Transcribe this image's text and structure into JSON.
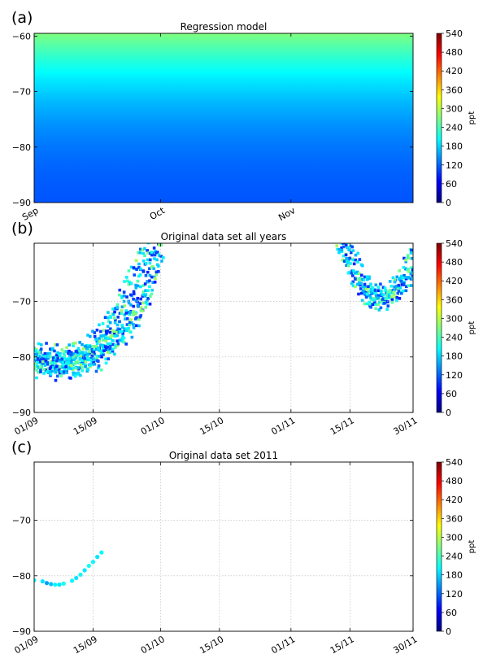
{
  "colormap": {
    "name": "jet",
    "stops": [
      "#00007f",
      "#0000ff",
      "#007fff",
      "#00ffff",
      "#7fff7f",
      "#ffff00",
      "#ff7f00",
      "#ff0000",
      "#7f0000"
    ]
  },
  "chart_data": [
    {
      "panel_label": "(a)",
      "type": "heatmap",
      "title": "Regression model",
      "xlabel": "",
      "ylabel": "",
      "ylim": [
        -90,
        -59.5
      ],
      "xlim": [
        "2011-09-01",
        "2011-11-30"
      ],
      "yticks": [
        -60,
        -70,
        -80,
        -90
      ],
      "xticks": [
        {
          "label": "Sep",
          "date": "2011-09-01"
        },
        {
          "label": "Oct",
          "date": "2011-10-01"
        },
        {
          "label": "Nov",
          "date": "2011-11-01"
        }
      ],
      "grid": false,
      "colorbar": {
        "label": "ppt",
        "range": [
          0,
          540
        ],
        "ticks": [
          0,
          60,
          120,
          180,
          240,
          300,
          360,
          420,
          480,
          540
        ]
      },
      "field": {
        "lat": [
          -59.5,
          -64,
          -68,
          -72,
          -76,
          -80,
          -84,
          -87,
          -90
        ],
        "value_start": [
          270,
          225,
          190,
          165,
          145,
          130,
          120,
          115,
          112
        ],
        "value_end": [
          255,
          215,
          180,
          158,
          140,
          127,
          118,
          114,
          111
        ]
      }
    },
    {
      "panel_label": "(b)",
      "type": "scatter",
      "title": "Original data set all years",
      "xlabel": "",
      "ylabel": "",
      "ylim": [
        -90,
        -59.5
      ],
      "xlim": [
        "2011-09-01",
        "2011-11-30"
      ],
      "yticks": [
        -70,
        -80,
        -90
      ],
      "xticks": [
        {
          "label": "01/09",
          "date": "2011-09-01"
        },
        {
          "label": "15/09",
          "date": "2011-09-15"
        },
        {
          "label": "01/10",
          "date": "2011-10-01"
        },
        {
          "label": "15/10",
          "date": "2011-10-15"
        },
        {
          "label": "01/11",
          "date": "2011-11-01"
        },
        {
          "label": "15/11",
          "date": "2011-11-15"
        },
        {
          "label": "30/11",
          "date": "2011-11-30"
        }
      ],
      "grid": true,
      "colorbar": {
        "label": "ppt",
        "range": [
          0,
          540
        ],
        "ticks": [
          0,
          60,
          120,
          180,
          240,
          300,
          360,
          420,
          480,
          540
        ]
      },
      "tracks": [
        {
          "name": "",
          "lat": [
            -79.5,
            -79.8,
            -79.6,
            -78.5,
            -76,
            -72,
            -67.5,
            -63,
            -59.5
          ],
          "date": [
            "2011-09-01",
            "2011-09-05",
            "2011-09-09",
            "2011-09-13",
            "2011-09-17",
            "2011-09-20",
            "2011-09-23",
            "2011-09-26",
            "2011-09-28"
          ]
        },
        {
          "name": "",
          "lat": [
            -80,
            -80.5,
            -80.6,
            -79.8,
            -77.5,
            -74,
            -70,
            -65,
            -59.5
          ],
          "date": [
            "2011-09-01",
            "2011-09-05",
            "2011-09-09",
            "2011-09-13",
            "2011-09-17",
            "2011-09-21",
            "2011-09-24",
            "2011-09-27",
            "2011-09-30"
          ]
        },
        {
          "name": "",
          "lat": [
            -80.8,
            -81.2,
            -81.4,
            -80.8,
            -78.8,
            -75.5,
            -71.5,
            -66.5,
            -59.5
          ],
          "date": [
            "2011-09-01",
            "2011-09-05",
            "2011-09-09",
            "2011-09-13",
            "2011-09-17",
            "2011-09-21",
            "2011-09-25",
            "2011-09-28",
            "2011-10-01"
          ]
        },
        {
          "name": "",
          "lat": [
            -81.5,
            -82,
            -82.2,
            -81.6,
            -79.8,
            -76.5,
            -72.5,
            -67.5,
            -59.5
          ],
          "date": [
            "2011-09-01",
            "2011-09-05",
            "2011-09-09",
            "2011-09-13",
            "2011-09-18",
            "2011-09-22",
            "2011-09-26",
            "2011-09-29",
            "2011-10-02"
          ]
        },
        {
          "name": "",
          "lat": [
            -59.5,
            -63,
            -66.5,
            -69,
            -70,
            -69,
            -66,
            -62,
            -59.5
          ],
          "date": [
            "2011-11-13",
            "2011-11-15",
            "2011-11-17",
            "2011-11-19",
            "2011-11-22",
            "2011-11-25",
            "2011-11-27",
            "2011-11-29",
            "2011-11-30"
          ]
        },
        {
          "name": "",
          "lat": [
            -59.5,
            -62.5,
            -66,
            -68.5,
            -69.6,
            -68.8,
            -66.5,
            -64
          ],
          "date": [
            "2011-11-12",
            "2011-11-14",
            "2011-11-16",
            "2011-11-18",
            "2011-11-21",
            "2011-11-24",
            "2011-11-27",
            "2011-11-30"
          ]
        },
        {
          "name": "",
          "lat": [
            -59.5,
            -62,
            -65,
            -67.5,
            -68.8,
            -68.5,
            -67.2,
            -65.5
          ],
          "date": [
            "2011-11-14",
            "2011-11-16",
            "2011-11-18",
            "2011-11-20",
            "2011-11-23",
            "2011-11-26",
            "2011-11-28",
            "2011-11-30"
          ]
        }
      ]
    },
    {
      "panel_label": "(c)",
      "type": "scatter",
      "title": "Original data set 2011",
      "xlabel": "",
      "ylabel": "",
      "ylim": [
        -90,
        -59.5
      ],
      "xlim": [
        "2011-09-01",
        "2011-11-30"
      ],
      "yticks": [
        -70,
        -80,
        -90
      ],
      "xticks": [
        {
          "label": "01/09",
          "date": "2011-09-01"
        },
        {
          "label": "15/09",
          "date": "2011-09-15"
        },
        {
          "label": "01/10",
          "date": "2011-10-01"
        },
        {
          "label": "15/10",
          "date": "2011-10-15"
        },
        {
          "label": "01/11",
          "date": "2011-11-01"
        },
        {
          "label": "15/11",
          "date": "2011-11-15"
        },
        {
          "label": "30/11",
          "date": "2011-11-30"
        }
      ],
      "grid": true,
      "colorbar": {
        "label": "ppt",
        "range": [
          0,
          540
        ],
        "ticks": [
          0,
          60,
          120,
          180,
          240,
          300,
          360,
          420,
          480,
          540
        ]
      },
      "points": [
        {
          "date": "2011-09-01",
          "lat": -80.8,
          "value": 200
        },
        {
          "date": "2011-09-03",
          "lat": -81.0,
          "value": 190
        },
        {
          "date": "2011-09-04",
          "lat": -81.3,
          "value": 150
        },
        {
          "date": "2011-09-05",
          "lat": -81.5,
          "value": 170
        },
        {
          "date": "2011-09-06",
          "lat": -81.6,
          "value": 200
        },
        {
          "date": "2011-09-07",
          "lat": -81.6,
          "value": 190
        },
        {
          "date": "2011-09-08",
          "lat": -81.4,
          "value": 210
        },
        {
          "date": "2011-09-10",
          "lat": -80.9,
          "value": 200
        },
        {
          "date": "2011-09-11",
          "lat": -80.4,
          "value": 190
        },
        {
          "date": "2011-09-12",
          "lat": -79.8,
          "value": 200
        },
        {
          "date": "2011-09-13",
          "lat": -79.0,
          "value": 190
        },
        {
          "date": "2011-09-14",
          "lat": -78.2,
          "value": 210
        },
        {
          "date": "2011-09-15",
          "lat": -77.5,
          "value": 200
        },
        {
          "date": "2011-09-16",
          "lat": -76.6,
          "value": 190
        },
        {
          "date": "2011-09-17",
          "lat": -75.8,
          "value": 200
        }
      ]
    }
  ]
}
